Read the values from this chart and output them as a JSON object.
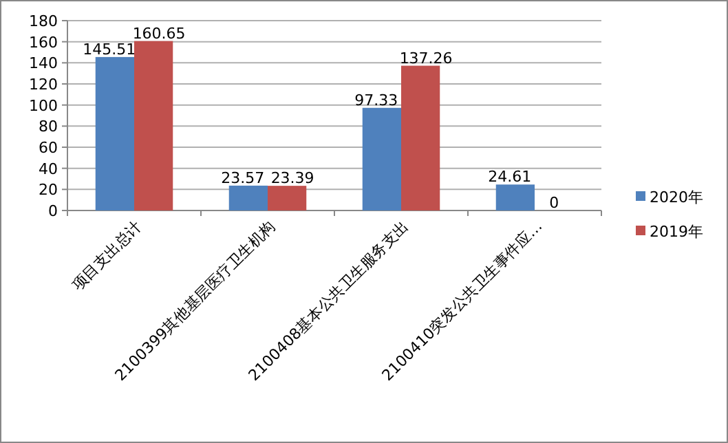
{
  "chart_data": {
    "type": "bar",
    "categories": [
      "项目支出总计",
      "2100399其他基层医疗卫生机构",
      "2100408基本公共卫生服务支出",
      "2100410突发公共卫生事件应…"
    ],
    "series": [
      {
        "name": "2020年",
        "color": "#4f81bd",
        "values": [
          145.51,
          23.57,
          97.33,
          24.61
        ]
      },
      {
        "name": "2019年",
        "color": "#c0504d",
        "values": [
          160.65,
          23.39,
          137.26,
          0
        ]
      }
    ],
    "ylim": [
      0,
      180
    ],
    "yticks": [
      0,
      20,
      40,
      60,
      80,
      100,
      120,
      140,
      160,
      180
    ],
    "grid": "y",
    "legend": "right",
    "data_labels": true
  }
}
